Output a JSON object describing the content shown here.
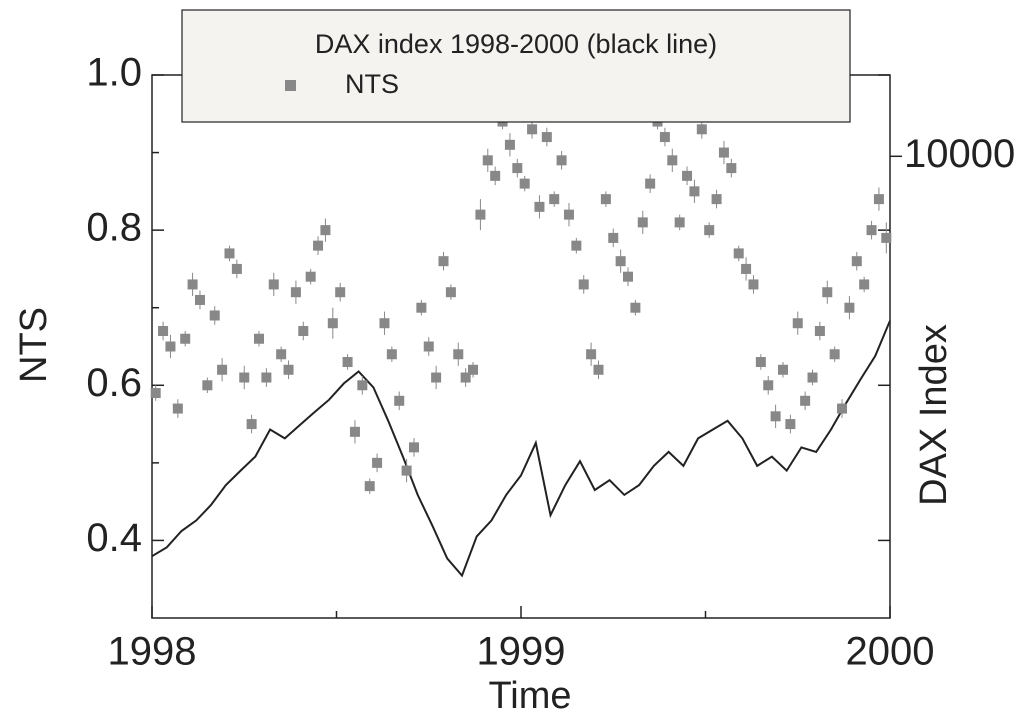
{
  "chart_data": {
    "type": "combo",
    "xlabel": "Time",
    "ylabel": "NTS",
    "y2label": "DAX Index",
    "xlim": [
      1998,
      2000
    ],
    "xticks": [
      1998,
      1999,
      2000
    ],
    "xminorticks": [
      1998.5,
      1999.5
    ],
    "ylim": [
      0.3,
      1.0
    ],
    "yticks": [
      {
        "value": 0.4,
        "label": "0.4"
      },
      {
        "value": 0.6,
        "label": "0.6"
      },
      {
        "value": 0.8,
        "label": "0.8"
      },
      {
        "value": 1.0,
        "label": "1.0"
      }
    ],
    "yminorticks": [
      0.5,
      0.7,
      0.9
    ],
    "y2lim": [
      4100,
      11700
    ],
    "y2log": true,
    "y2ticks": [
      10000
    ],
    "legend": "top",
    "series": [
      {
        "name": "DAX index 1998-2000 (black line)",
        "type": "line",
        "axis": "y2",
        "color": "#222222",
        "x": [
          1998.0,
          1998.04,
          1998.08,
          1998.12,
          1998.16,
          1998.2,
          1998.24,
          1998.28,
          1998.32,
          1998.36,
          1998.4,
          1998.44,
          1998.48,
          1998.52,
          1998.56,
          1998.6,
          1998.64,
          1998.68,
          1998.72,
          1998.76,
          1998.8,
          1998.84,
          1998.88,
          1998.92,
          1998.96,
          1999.0,
          1999.04,
          1999.08,
          1999.12,
          1999.16,
          1999.2,
          1999.24,
          1999.28,
          1999.32,
          1999.36,
          1999.4,
          1999.44,
          1999.48,
          1999.52,
          1999.56,
          1999.6,
          1999.64,
          1999.68,
          1999.72,
          1999.76,
          1999.8,
          1999.84,
          1999.88,
          1999.92,
          1999.96,
          2000.0
        ],
        "values": [
          4620,
          4700,
          4850,
          4950,
          5100,
          5300,
          5450,
          5600,
          5900,
          5800,
          5950,
          6100,
          6250,
          6450,
          6600,
          6400,
          6000,
          5600,
          5200,
          4900,
          4600,
          4450,
          4800,
          4950,
          5200,
          5400,
          5750,
          5000,
          5300,
          5550,
          5250,
          5350,
          5200,
          5300,
          5500,
          5650,
          5500,
          5800,
          5900,
          6000,
          5800,
          5500,
          5600,
          5450,
          5700,
          5650,
          5900,
          6200,
          6500,
          6800,
          7280
        ]
      },
      {
        "name": "NTS",
        "type": "scatter",
        "color": "#888888",
        "x": [
          1998.01,
          1998.03,
          1998.05,
          1998.07,
          1998.09,
          1998.11,
          1998.13,
          1998.15,
          1998.17,
          1998.19,
          1998.21,
          1998.23,
          1998.25,
          1998.27,
          1998.29,
          1998.31,
          1998.33,
          1998.35,
          1998.37,
          1998.39,
          1998.41,
          1998.43,
          1998.45,
          1998.47,
          1998.49,
          1998.51,
          1998.53,
          1998.55,
          1998.57,
          1998.59,
          1998.61,
          1998.63,
          1998.65,
          1998.67,
          1998.69,
          1998.71,
          1998.73,
          1998.75,
          1998.77,
          1998.79,
          1998.81,
          1998.83,
          1998.85,
          1998.87,
          1998.89,
          1998.91,
          1998.93,
          1998.95,
          1998.97,
          1998.99,
          1999.01,
          1999.03,
          1999.05,
          1999.07,
          1999.09,
          1999.11,
          1999.13,
          1999.15,
          1999.17,
          1999.19,
          1999.21,
          1999.23,
          1999.25,
          1999.27,
          1999.29,
          1999.31,
          1999.33,
          1999.35,
          1999.37,
          1999.39,
          1999.41,
          1999.43,
          1999.45,
          1999.47,
          1999.49,
          1999.51,
          1999.53,
          1999.55,
          1999.57,
          1999.59,
          1999.61,
          1999.63,
          1999.65,
          1999.67,
          1999.69,
          1999.71,
          1999.73,
          1999.75,
          1999.77,
          1999.79,
          1999.81,
          1999.83,
          1999.85,
          1999.87,
          1999.89,
          1999.91,
          1999.93,
          1999.95,
          1999.97,
          1999.99
        ],
        "values": [
          0.59,
          0.67,
          0.65,
          0.57,
          0.66,
          0.73,
          0.71,
          0.6,
          0.69,
          0.62,
          0.77,
          0.75,
          0.61,
          0.55,
          0.66,
          0.61,
          0.73,
          0.64,
          0.62,
          0.72,
          0.67,
          0.74,
          0.78,
          0.8,
          0.68,
          0.72,
          0.63,
          0.54,
          0.6,
          0.47,
          0.5,
          0.68,
          0.64,
          0.58,
          0.49,
          0.52,
          0.7,
          0.65,
          0.61,
          0.76,
          0.72,
          0.64,
          0.61,
          0.62,
          0.82,
          0.89,
          0.87,
          0.94,
          0.91,
          0.88,
          0.86,
          0.93,
          0.83,
          0.92,
          0.84,
          0.89,
          0.82,
          0.78,
          0.73,
          0.64,
          0.62,
          0.84,
          0.79,
          0.76,
          0.74,
          0.7,
          0.81,
          0.86,
          0.94,
          0.92,
          0.89,
          0.81,
          0.87,
          0.85,
          0.93,
          0.8,
          0.84,
          0.9,
          0.88,
          0.77,
          0.75,
          0.73,
          0.63,
          0.6,
          0.56,
          0.62,
          0.55,
          0.68,
          0.58,
          0.61,
          0.67,
          0.72,
          0.64,
          0.57,
          0.7,
          0.76,
          0.73,
          0.8,
          0.84,
          0.79
        ],
        "errors": [
          0.01,
          0.012,
          0.015,
          0.012,
          0.01,
          0.015,
          0.012,
          0.01,
          0.012,
          0.015,
          0.01,
          0.012,
          0.015,
          0.012,
          0.01,
          0.012,
          0.015,
          0.01,
          0.012,
          0.015,
          0.012,
          0.01,
          0.012,
          0.015,
          0.02,
          0.012,
          0.01,
          0.015,
          0.012,
          0.01,
          0.012,
          0.015,
          0.01,
          0.012,
          0.015,
          0.012,
          0.01,
          0.012,
          0.015,
          0.012,
          0.01,
          0.015,
          0.012,
          0.01,
          0.02,
          0.015,
          0.012,
          0.01,
          0.015,
          0.012,
          0.01,
          0.012,
          0.015,
          0.012,
          0.01,
          0.012,
          0.015,
          0.01,
          0.012,
          0.015,
          0.012,
          0.01,
          0.012,
          0.015,
          0.012,
          0.01,
          0.015,
          0.012,
          0.01,
          0.012,
          0.015,
          0.01,
          0.012,
          0.015,
          0.012,
          0.01,
          0.012,
          0.015,
          0.012,
          0.01,
          0.015,
          0.012,
          0.01,
          0.012,
          0.015,
          0.01,
          0.012,
          0.015,
          0.012,
          0.01,
          0.012,
          0.015,
          0.01,
          0.012,
          0.015,
          0.012,
          0.01,
          0.012,
          0.015,
          0.02
        ]
      }
    ]
  }
}
